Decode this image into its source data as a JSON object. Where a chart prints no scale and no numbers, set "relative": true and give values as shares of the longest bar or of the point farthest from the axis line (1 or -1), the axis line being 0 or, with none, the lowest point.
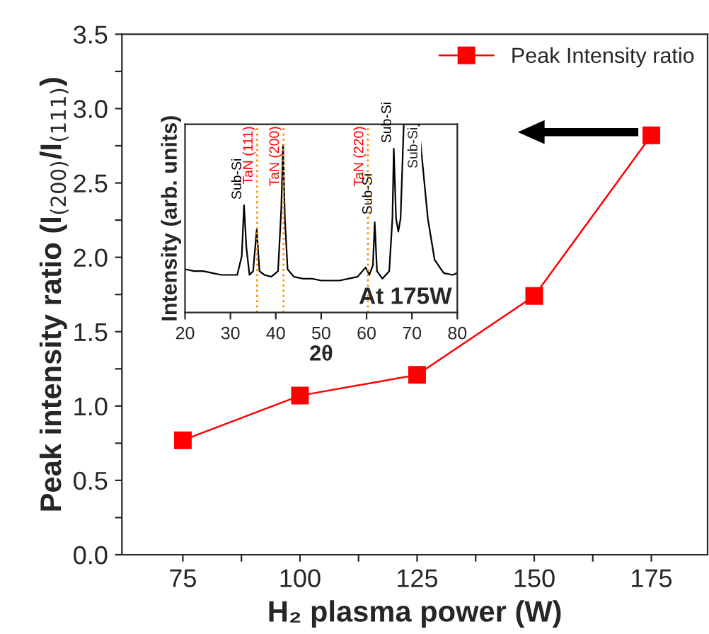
{
  "chart_data": [
    {
      "type": "line",
      "xlabel": "H₂ plasma power (W)",
      "ylabel": "Peak intensity ratio (I$_{(200)}$/I$_{(111)}$)",
      "x": [
        75,
        100,
        125,
        150,
        175
      ],
      "series": [
        {
          "name": "Peak Intensity ratio",
          "color": "#ff0000",
          "values": [
            0.77,
            1.07,
            1.21,
            1.74,
            2.82
          ]
        }
      ],
      "xlim": [
        62,
        187
      ],
      "xticks": [
        75,
        {
          "value": 87.5,
          "label": null
        },
        100,
        {
          "value": 112.5,
          "label": null
        },
        125,
        {
          "value": 137.5,
          "label": null
        },
        150,
        {
          "value": 162.5,
          "label": null
        },
        175
      ],
      "ylim": [
        0,
        3.5
      ],
      "yticks": [
        {
          "value": 0,
          "label": "0.0"
        },
        {
          "value": 0.25,
          "label": null
        },
        0.5,
        {
          "value": 0.75,
          "label": null
        },
        {
          "value": 1,
          "label": "1.0"
        },
        {
          "value": 1.25,
          "label": null
        },
        1.5,
        {
          "value": 1.75,
          "label": null
        },
        {
          "value": 2,
          "label": "2.0"
        },
        {
          "value": 2.25,
          "label": null
        },
        2.5,
        {
          "value": 2.75,
          "label": null
        },
        {
          "value": 3,
          "label": "3.0"
        },
        {
          "value": 3.25,
          "label": null
        },
        3.5
      ],
      "legend": "top right",
      "marker": "square",
      "line_style": "solid",
      "grid": false
    },
    {
      "type": "line",
      "xlabel": "2θ",
      "ylabel": "Intensity (arb. units)",
      "relative": true,
      "tick_labels": "x",
      "grid": false,
      "x": [
        20,
        22,
        24,
        26,
        28,
        30,
        31.5,
        32.5,
        33,
        33.5,
        34.2,
        35,
        35.8,
        36.4,
        37.5,
        39,
        40.5,
        41.2,
        41.6,
        42,
        42.6,
        44,
        46,
        48,
        50,
        52,
        54,
        56,
        58,
        59.8,
        60.6,
        61.4,
        61.8,
        62.3,
        63.5,
        65,
        65.7,
        66,
        66.5,
        67,
        67.5,
        68.2,
        71.5,
        72.5,
        73.5,
        75,
        77,
        79,
        80
      ],
      "series": [
        {
          "color": "#000000",
          "values": [
            0.23,
            0.22,
            0.22,
            0.21,
            0.2,
            0.2,
            0.2,
            0.3,
            0.57,
            0.35,
            0.2,
            0.22,
            0.44,
            0.22,
            0.2,
            0.19,
            0.22,
            0.55,
            0.89,
            0.5,
            0.23,
            0.19,
            0.18,
            0.18,
            0.17,
            0.17,
            0.17,
            0.18,
            0.19,
            0.24,
            0.2,
            0.25,
            0.48,
            0.22,
            0.18,
            0.22,
            0.5,
            0.87,
            0.5,
            0.43,
            0.5,
            1.0,
            1.0,
            0.75,
            0.5,
            0.28,
            0.21,
            0.2,
            0.21
          ]
        }
      ],
      "xlim": [
        20,
        80
      ],
      "xticks": [
        20,
        30,
        40,
        50,
        60,
        70,
        80
      ],
      "ref_lines": [
        {
          "axis": "x",
          "value": 35.9,
          "label": "TaN (111)",
          "color": "#ff8c00",
          "line_style": "dotted"
        },
        {
          "axis": "x",
          "value": 41.7,
          "label": "TaN (200)",
          "color": "#ff8c00",
          "line_style": "dotted"
        },
        {
          "axis": "x",
          "value": 60.3,
          "label": "TaN (220)",
          "color": "#ff8c00",
          "line_style": "dotted"
        }
      ],
      "annotations": [
        {
          "text": "Sub-Si",
          "x": 33,
          "y": 0.6
        },
        {
          "text": "Sub-Si",
          "x": 61.8,
          "y": 0.52
        },
        {
          "text": "Sub-Si",
          "x": 66,
          "y": 0.9
        },
        "Sub-Si",
        "At 175W"
      ]
    }
  ]
}
